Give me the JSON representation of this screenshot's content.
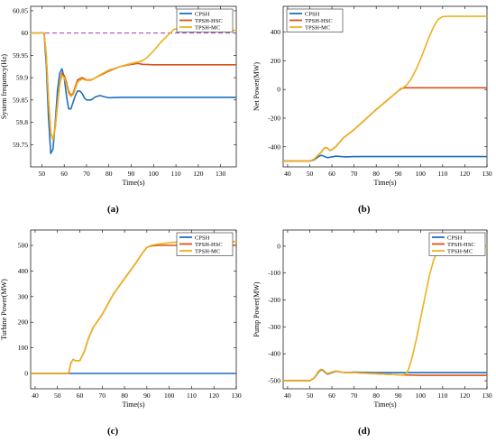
{
  "colors": {
    "CPSH": "#1f6fc0",
    "TPSH-HSC": "#d95319",
    "TPSH-MC": "#edb120",
    "reference": "#9b3fa8"
  },
  "captions": [
    "(a)",
    "(b)",
    "(c)",
    "(d)"
  ],
  "chart_data": [
    {
      "type": "line",
      "panel": "a",
      "title": "",
      "xlabel": "Time(s)",
      "ylabel": "System frequency(Hz)",
      "xlim": [
        45,
        137
      ],
      "ylim": [
        59.7,
        60.06
      ],
      "xticks": [
        50,
        60,
        70,
        80,
        90,
        100,
        110,
        120,
        130
      ],
      "yticks": [
        59.75,
        59.8,
        59.85,
        59.9,
        59.95,
        60,
        60.05
      ],
      "ytick_labels": [
        "59.75",
        "59.8",
        "59.85",
        "59.9",
        "59.95",
        "60",
        "60.05"
      ],
      "legend": "top-right",
      "reference_line": {
        "y": 60,
        "style": "dashed"
      },
      "series": [
        {
          "name": "CPSH",
          "x": [
            45,
            50,
            51,
            52,
            53,
            54,
            55,
            56,
            57,
            58,
            59,
            60,
            61,
            62,
            63,
            64,
            65,
            66,
            67,
            68,
            69,
            70,
            72,
            74,
            76,
            78,
            80,
            85,
            90,
            100,
            110,
            120,
            130,
            137
          ],
          "y": [
            60,
            60,
            60,
            59.93,
            59.81,
            59.73,
            59.74,
            59.8,
            59.87,
            59.91,
            59.92,
            59.9,
            59.86,
            59.83,
            59.83,
            59.845,
            59.86,
            59.87,
            59.87,
            59.865,
            59.855,
            59.85,
            59.85,
            59.857,
            59.86,
            59.857,
            59.855,
            59.856,
            59.856,
            59.856,
            59.856,
            59.856,
            59.856,
            59.856
          ]
        },
        {
          "name": "TPSH-HSC",
          "x": [
            45,
            50,
            51,
            52,
            53,
            54,
            55,
            56,
            57,
            58,
            59,
            60,
            61,
            62,
            63,
            64,
            65,
            66,
            68,
            70,
            72,
            74,
            76,
            78,
            80,
            85,
            90,
            93,
            95,
            100,
            110,
            120,
            130,
            137
          ],
          "y": [
            60,
            60,
            60,
            59.95,
            59.85,
            59.775,
            59.76,
            59.79,
            59.84,
            59.885,
            59.91,
            59.905,
            59.89,
            59.87,
            59.86,
            59.865,
            59.88,
            59.895,
            59.9,
            59.895,
            59.895,
            59.9,
            59.905,
            59.91,
            59.915,
            59.925,
            59.93,
            59.932,
            59.93,
            59.929,
            59.929,
            59.929,
            59.929,
            59.929
          ]
        },
        {
          "name": "TPSH-MC",
          "x": [
            45,
            50,
            51,
            52,
            53,
            54,
            55,
            56,
            57,
            58,
            59,
            60,
            61,
            62,
            63,
            64,
            65,
            66,
            68,
            70,
            72,
            74,
            76,
            78,
            80,
            85,
            90,
            93,
            95,
            97,
            100,
            103,
            106,
            109,
            112,
            115,
            120,
            125,
            130,
            137
          ],
          "y": [
            60,
            60,
            60,
            59.95,
            59.85,
            59.775,
            59.76,
            59.79,
            59.84,
            59.885,
            59.905,
            59.9,
            59.885,
            59.865,
            59.858,
            59.862,
            59.875,
            59.89,
            59.897,
            59.894,
            59.894,
            59.9,
            59.906,
            59.912,
            59.917,
            59.925,
            59.932,
            59.935,
            59.938,
            59.945,
            59.96,
            59.978,
            59.993,
            60.008,
            60.011,
            60.007,
            60.005,
            60.006,
            60.006,
            60.006
          ]
        }
      ]
    },
    {
      "type": "line",
      "panel": "b",
      "title": "",
      "xlabel": "Time(s)",
      "ylabel": "Net Power(MW)",
      "xlim": [
        38,
        130
      ],
      "ylim": [
        -540,
        580
      ],
      "xticks": [
        40,
        50,
        60,
        70,
        80,
        90,
        100,
        110,
        120,
        130
      ],
      "yticks": [
        -400,
        -200,
        0,
        200,
        400
      ],
      "legend": "top-left",
      "series": [
        {
          "name": "CPSH",
          "x": [
            38,
            50,
            52,
            54,
            55,
            56,
            57,
            58,
            60,
            62,
            64,
            66,
            70,
            80,
            90,
            100,
            110,
            120,
            130
          ],
          "y": [
            -500,
            -500,
            -490,
            -468,
            -460,
            -462,
            -470,
            -476,
            -470,
            -465,
            -468,
            -470,
            -468,
            -468,
            -468,
            -468,
            -468,
            -468,
            -468
          ]
        },
        {
          "name": "TPSH-HSC",
          "x": [
            38,
            50,
            52,
            54,
            55,
            56,
            57,
            58,
            59,
            60,
            62,
            65,
            70,
            75,
            80,
            85,
            90,
            91,
            93,
            95,
            100,
            110,
            120,
            130
          ],
          "y": [
            -500,
            -500,
            -485,
            -455,
            -440,
            -420,
            -405,
            -410,
            -425,
            -420,
            -395,
            -340,
            -280,
            -210,
            -140,
            -75,
            -10,
            5,
            12,
            12,
            12,
            12,
            12,
            12
          ]
        },
        {
          "name": "TPSH-MC",
          "x": [
            38,
            50,
            52,
            54,
            55,
            56,
            57,
            58,
            59,
            60,
            62,
            65,
            70,
            75,
            80,
            85,
            90,
            92,
            94,
            96,
            98,
            100,
            102,
            104,
            106,
            108,
            110,
            112,
            120,
            130
          ],
          "y": [
            -500,
            -500,
            -485,
            -455,
            -440,
            -420,
            -405,
            -410,
            -425,
            -420,
            -395,
            -340,
            -280,
            -210,
            -140,
            -75,
            -10,
            10,
            35,
            80,
            140,
            210,
            290,
            370,
            440,
            490,
            508,
            510,
            510,
            510
          ]
        }
      ]
    },
    {
      "type": "line",
      "panel": "c",
      "title": "",
      "xlabel": "Time(s)",
      "ylabel": "Turbine Power(MW)",
      "xlim": [
        38,
        130
      ],
      "ylim": [
        -60,
        560
      ],
      "xticks": [
        40,
        50,
        60,
        70,
        80,
        90,
        100,
        110,
        120,
        130
      ],
      "yticks": [
        0,
        100,
        200,
        300,
        400,
        500
      ],
      "legend": "top-right",
      "series": [
        {
          "name": "CPSH",
          "x": [
            38,
            130
          ],
          "y": [
            0,
            0
          ]
        },
        {
          "name": "TPSH-HSC",
          "x": [
            38,
            55,
            56,
            57,
            58,
            60,
            62,
            64,
            66,
            70,
            75,
            80,
            85,
            88,
            90,
            92,
            95,
            100,
            110,
            120,
            130
          ],
          "y": [
            0,
            0,
            40,
            55,
            50,
            50,
            85,
            140,
            180,
            230,
            310,
            370,
            430,
            470,
            492,
            498,
            500,
            500,
            500,
            500,
            500
          ]
        },
        {
          "name": "TPSH-MC",
          "x": [
            38,
            55,
            56,
            57,
            58,
            60,
            62,
            64,
            66,
            70,
            75,
            80,
            85,
            88,
            90,
            92,
            95,
            100,
            105,
            110,
            120,
            130
          ],
          "y": [
            0,
            0,
            40,
            55,
            50,
            50,
            85,
            140,
            180,
            230,
            310,
            370,
            430,
            470,
            492,
            500,
            505,
            510,
            514,
            515,
            515,
            515
          ]
        }
      ]
    },
    {
      "type": "line",
      "panel": "d",
      "title": "",
      "xlabel": "Time(s)",
      "ylabel": "Pump Power(MW)",
      "xlim": [
        38,
        130
      ],
      "ylim": [
        -530,
        60
      ],
      "xticks": [
        40,
        50,
        60,
        70,
        80,
        90,
        100,
        110,
        120,
        130
      ],
      "yticks": [
        -500,
        -400,
        -300,
        -200,
        -100,
        0
      ],
      "legend": "top-right",
      "series": [
        {
          "name": "CPSH",
          "x": [
            38,
            50,
            52,
            54,
            55,
            56,
            57,
            58,
            60,
            62,
            64,
            66,
            70,
            80,
            90,
            100,
            110,
            120,
            130
          ],
          "y": [
            -500,
            -500,
            -490,
            -468,
            -460,
            -462,
            -470,
            -476,
            -470,
            -465,
            -468,
            -470,
            -468,
            -470,
            -470,
            -470,
            -470,
            -470,
            -470
          ]
        },
        {
          "name": "TPSH-HSC",
          "x": [
            38,
            50,
            52,
            54,
            55,
            56,
            57,
            58,
            60,
            62,
            64,
            66,
            70,
            80,
            90,
            100,
            110,
            120,
            130
          ],
          "y": [
            -500,
            -500,
            -490,
            -465,
            -458,
            -460,
            -468,
            -474,
            -468,
            -464,
            -468,
            -470,
            -470,
            -474,
            -478,
            -480,
            -480,
            -480,
            -480
          ]
        },
        {
          "name": "TPSH-MC",
          "x": [
            38,
            50,
            52,
            54,
            55,
            56,
            57,
            58,
            60,
            62,
            64,
            66,
            70,
            80,
            90,
            92,
            94,
            96,
            98,
            100,
            102,
            104,
            106,
            108,
            110,
            112,
            120,
            130
          ],
          "y": [
            -500,
            -500,
            -490,
            -465,
            -458,
            -460,
            -468,
            -474,
            -468,
            -464,
            -468,
            -470,
            -470,
            -474,
            -478,
            -480,
            -470,
            -420,
            -350,
            -270,
            -190,
            -110,
            -50,
            -12,
            0,
            0,
            0,
            0
          ]
        }
      ]
    }
  ]
}
